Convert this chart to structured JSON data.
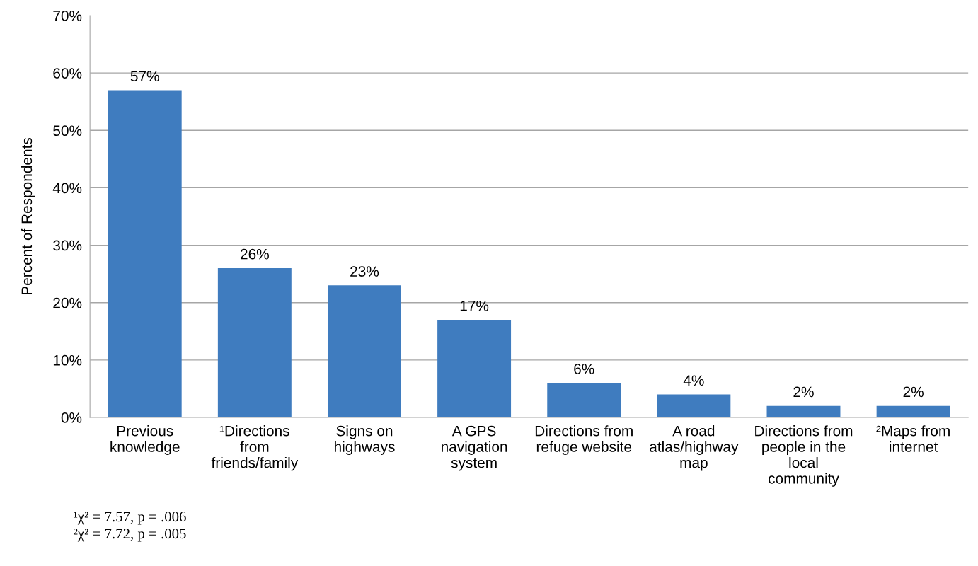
{
  "chart_data": {
    "type": "bar",
    "ylabel": "Percent of Respondents",
    "categories": [
      "Previous\nknowledge",
      "¹Directions\nfrom\nfriends/family",
      "Signs on\nhighways",
      "A GPS\nnavigation\nsystem",
      "Directions from\nrefuge website",
      "A road\natlas/highway\nmap",
      "Directions from\npeople in the\nlocal\ncommunity",
      "²Maps from\ninternet"
    ],
    "values": [
      57,
      26,
      23,
      17,
      6,
      4,
      2,
      2
    ],
    "color": "#3f7cbf",
    "ylim": [
      0,
      70
    ],
    "yticks": [
      {
        "value": 0,
        "label": "0%"
      },
      {
        "value": 10,
        "label": "10%"
      },
      {
        "value": 20,
        "label": "20%"
      },
      {
        "value": 30,
        "label": "30%"
      },
      {
        "value": 40,
        "label": "40%"
      },
      {
        "value": 50,
        "label": "50%"
      },
      {
        "value": 60,
        "label": "60%"
      },
      {
        "value": 70,
        "label": "70%"
      }
    ],
    "value_labels": [
      "57%",
      "26%",
      "23%",
      "17%",
      "6%",
      "4%",
      "2%",
      "2%"
    ],
    "grid": "y",
    "annotations": [
      "¹χ² = 7.57, p = .006",
      "²χ² = 7.72, p = .005"
    ]
  }
}
